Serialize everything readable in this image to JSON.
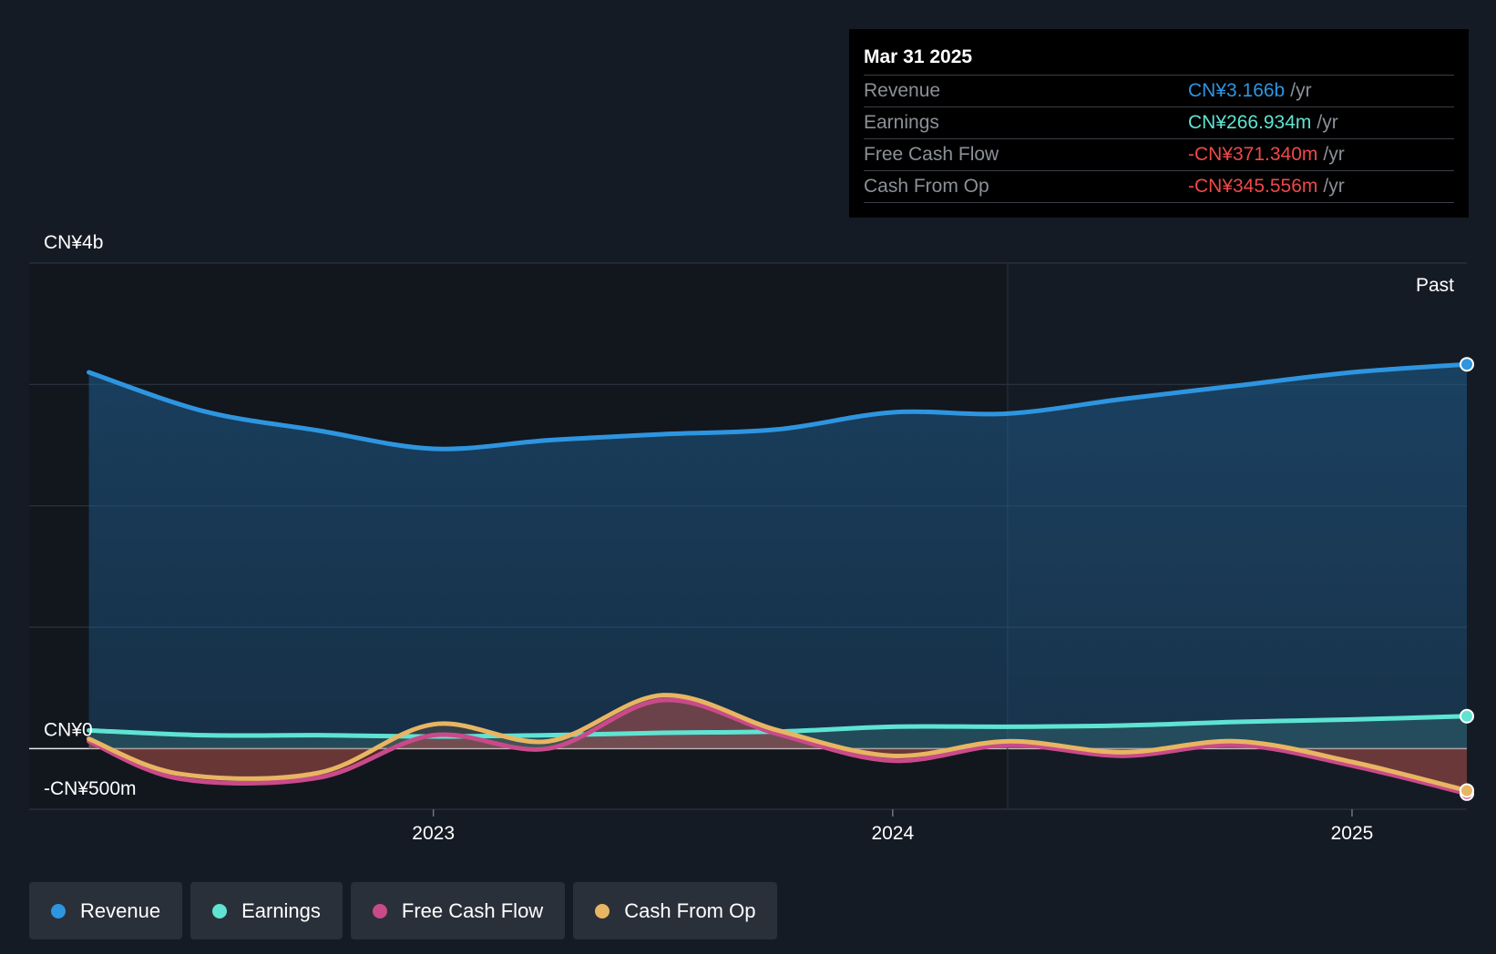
{
  "tooltip": {
    "date": "Mar 31 2025",
    "rows": [
      {
        "label": "Revenue",
        "value": "CN¥3.166b",
        "unit": "/yr",
        "color": "#2e95e0"
      },
      {
        "label": "Earnings",
        "value": "CN¥266.934m",
        "unit": "/yr",
        "color": "#5fe3d2"
      },
      {
        "label": "Free Cash Flow",
        "value": "-CN¥371.340m",
        "unit": "/yr",
        "color": "#f04848"
      },
      {
        "label": "Cash From Op",
        "value": "-CN¥345.556m",
        "unit": "/yr",
        "color": "#f04848"
      }
    ]
  },
  "legend": [
    {
      "label": "Revenue",
      "color": "#2e95e0"
    },
    {
      "label": "Earnings",
      "color": "#5fe3d2"
    },
    {
      "label": "Free Cash Flow",
      "color": "#c94a8a"
    },
    {
      "label": "Cash From Op",
      "color": "#e8b562"
    }
  ],
  "chart_data": {
    "type": "line",
    "past_label": "Past",
    "y_tick_labels": [
      {
        "value": 4000,
        "label": "CN¥4b"
      },
      {
        "value": 0,
        "label": "CN¥0"
      },
      {
        "value": -500,
        "label": "-CN¥500m"
      }
    ],
    "ylim": [
      -500,
      4000
    ],
    "y_gridlines": [
      4000,
      3000,
      2000,
      1000,
      0,
      -500
    ],
    "x_ticks": [
      {
        "label": "2023",
        "x": 2023.0
      },
      {
        "label": "2024",
        "x": 2024.0
      },
      {
        "label": "2025",
        "x": 2025.0
      }
    ],
    "xlim": [
      2022.12,
      2025.25
    ],
    "highlight_start": 2024.25,
    "series": [
      {
        "name": "Revenue",
        "color": "#2e95e0",
        "points": [
          [
            2022.25,
            3100
          ],
          [
            2022.5,
            2780
          ],
          [
            2022.75,
            2620
          ],
          [
            2023.0,
            2470
          ],
          [
            2023.25,
            2540
          ],
          [
            2023.5,
            2590
          ],
          [
            2023.75,
            2630
          ],
          [
            2024.0,
            2770
          ],
          [
            2024.25,
            2760
          ],
          [
            2024.5,
            2880
          ],
          [
            2024.75,
            2990
          ],
          [
            2025.0,
            3100
          ],
          [
            2025.25,
            3166
          ]
        ]
      },
      {
        "name": "Earnings",
        "color": "#5fe3d2",
        "points": [
          [
            2022.25,
            150
          ],
          [
            2022.5,
            110
          ],
          [
            2022.75,
            110
          ],
          [
            2023.0,
            100
          ],
          [
            2023.25,
            110
          ],
          [
            2023.5,
            130
          ],
          [
            2023.75,
            140
          ],
          [
            2024.0,
            180
          ],
          [
            2024.25,
            180
          ],
          [
            2024.5,
            190
          ],
          [
            2024.75,
            220
          ],
          [
            2025.0,
            240
          ],
          [
            2025.25,
            267
          ]
        ]
      },
      {
        "name": "Free Cash Flow",
        "color": "#c94a8a",
        "points": [
          [
            2022.25,
            60
          ],
          [
            2022.45,
            -250
          ],
          [
            2022.75,
            -240
          ],
          [
            2023.0,
            110
          ],
          [
            2023.25,
            0
          ],
          [
            2023.5,
            400
          ],
          [
            2023.75,
            120
          ],
          [
            2024.0,
            -100
          ],
          [
            2024.25,
            30
          ],
          [
            2024.5,
            -60
          ],
          [
            2024.75,
            30
          ],
          [
            2025.0,
            -140
          ],
          [
            2025.25,
            -371
          ]
        ]
      },
      {
        "name": "Cash From Op",
        "color": "#e8b562",
        "points": [
          [
            2022.25,
            80
          ],
          [
            2022.45,
            -210
          ],
          [
            2022.75,
            -200
          ],
          [
            2023.0,
            200
          ],
          [
            2023.25,
            60
          ],
          [
            2023.5,
            440
          ],
          [
            2023.75,
            150
          ],
          [
            2024.0,
            -60
          ],
          [
            2024.25,
            60
          ],
          [
            2024.5,
            -30
          ],
          [
            2024.75,
            60
          ],
          [
            2025.0,
            -110
          ],
          [
            2025.25,
            -346
          ]
        ]
      }
    ]
  }
}
